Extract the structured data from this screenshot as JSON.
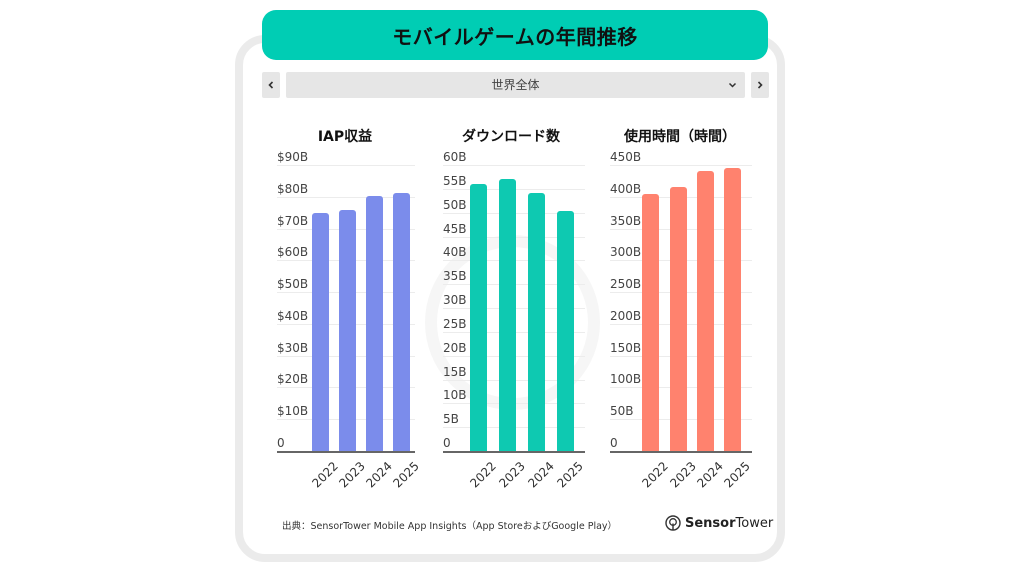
{
  "header": {
    "title": "モバイルゲームの年間推移"
  },
  "nav": {
    "prev_icon": "chevron-left-icon",
    "next_icon": "chevron-right-icon",
    "region_selected": "世界全体",
    "dropdown_icon": "chevron-down-icon"
  },
  "charts": [
    {
      "title": "IAP収益",
      "color": "#7b8ceb",
      "ticks": [
        "$90B",
        "$80B",
        "$70B",
        "$60B",
        "$50B",
        "$40B",
        "$30B",
        "$20B",
        "$10B",
        "0"
      ],
      "max": 90,
      "years": [
        "2022",
        "2023",
        "2024",
        "2025"
      ],
      "values": [
        74.8,
        75.7,
        80.3,
        81.3
      ]
    },
    {
      "title": "ダウンロード数",
      "color": "#0ec9b1",
      "ticks": [
        "60B",
        "55B",
        "50B",
        "45B",
        "40B",
        "35B",
        "30B",
        "25B",
        "20B",
        "15B",
        "10B",
        "5B",
        "0"
      ],
      "max": 60,
      "years": [
        "2022",
        "2023",
        "2024",
        "2025"
      ],
      "values": [
        56.1,
        57.0,
        54.1,
        50.3
      ]
    },
    {
      "title": "使用時間（時間）",
      "color": "#ff826e",
      "ticks": [
        "450B",
        "400B",
        "350B",
        "300B",
        "250B",
        "200B",
        "150B",
        "100B",
        "50B",
        "0"
      ],
      "max": 450,
      "years": [
        "2022",
        "2023",
        "2024",
        "2025"
      ],
      "values": [
        404,
        415,
        441,
        445
      ]
    }
  ],
  "footer": {
    "source": "出典：SensorTower Mobile App Insights（App StoreおよびGoogle Play）",
    "logo_bold": "Sensor",
    "logo_light": "Tower",
    "logo_icon": "sensortower-logo-icon"
  },
  "chart_data": [
    {
      "type": "bar",
      "title": "IAP収益",
      "categories": [
        "2022",
        "2023",
        "2024",
        "2025"
      ],
      "values": [
        74.8,
        75.7,
        80.3,
        81.3
      ],
      "xlabel": "",
      "ylabel": "",
      "ylim": [
        0,
        90
      ],
      "yticks": [
        "0",
        "$10B",
        "$20B",
        "$30B",
        "$40B",
        "$50B",
        "$60B",
        "$70B",
        "$80B",
        "$90B"
      ],
      "unit": "USD billions",
      "grid": true,
      "color": "#7b8ceb"
    },
    {
      "type": "bar",
      "title": "ダウンロード数",
      "categories": [
        "2022",
        "2023",
        "2024",
        "2025"
      ],
      "values": [
        56.1,
        57.0,
        54.1,
        50.3
      ],
      "xlabel": "",
      "ylabel": "",
      "ylim": [
        0,
        60
      ],
      "yticks": [
        "0",
        "5B",
        "10B",
        "15B",
        "20B",
        "25B",
        "30B",
        "35B",
        "40B",
        "45B",
        "50B",
        "55B",
        "60B"
      ],
      "unit": "billions",
      "grid": true,
      "color": "#0ec9b1"
    },
    {
      "type": "bar",
      "title": "使用時間（時間）",
      "categories": [
        "2022",
        "2023",
        "2024",
        "2025"
      ],
      "values": [
        404,
        415,
        441,
        445
      ],
      "xlabel": "",
      "ylabel": "",
      "ylim": [
        0,
        450
      ],
      "yticks": [
        "0",
        "50B",
        "100B",
        "150B",
        "200B",
        "250B",
        "300B",
        "350B",
        "400B",
        "450B"
      ],
      "unit": "billion hours",
      "grid": true,
      "color": "#ff826e"
    }
  ]
}
